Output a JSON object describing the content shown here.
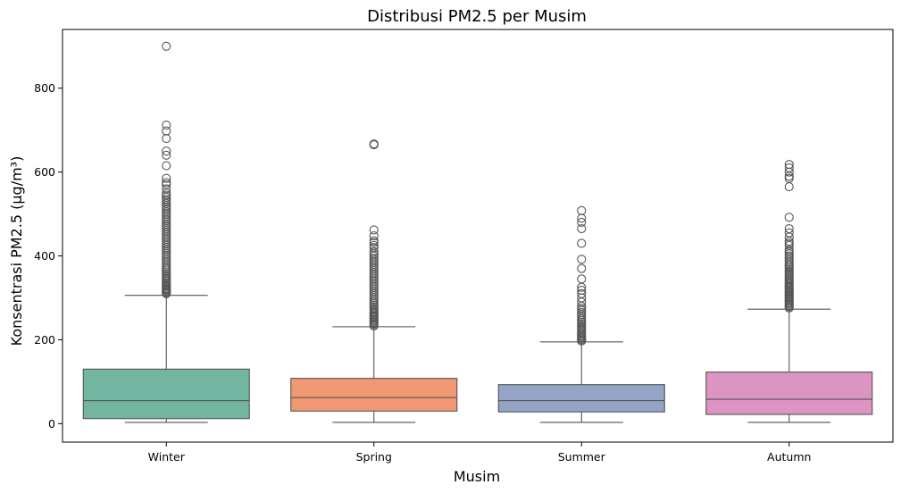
{
  "chart_data": {
    "type": "box",
    "title": "Distribusi PM2.5 per Musim",
    "xlabel": "Musim",
    "ylabel": "Konsentrasi PM2.5 (μg/m³)",
    "ylim": [
      -44,
      940
    ],
    "yticks": [
      0,
      200,
      400,
      600,
      800
    ],
    "grid": false,
    "categories": [
      "Winter",
      "Spring",
      "Summer",
      "Autumn"
    ],
    "colors": [
      "#72b5a0",
      "#ef9872",
      "#94a4c6",
      "#dc94c2"
    ],
    "line_color": "#555555",
    "boxes": [
      {
        "category": "Winter",
        "whisker_low": 3,
        "q1": 12,
        "median": 55,
        "q3": 130,
        "whisker_high": 306,
        "outliers": [
          310,
          312,
          315,
          318,
          320,
          322,
          325,
          328,
          330,
          333,
          336,
          340,
          343,
          346,
          350,
          354,
          358,
          362,
          366,
          370,
          375,
          380,
          385,
          390,
          395,
          400,
          405,
          410,
          415,
          420,
          425,
          430,
          435,
          440,
          445,
          450,
          455,
          460,
          465,
          470,
          475,
          480,
          485,
          490,
          495,
          500,
          505,
          510,
          515,
          520,
          525,
          530,
          535,
          540,
          545,
          550,
          560,
          570,
          575,
          585,
          615,
          640,
          650,
          680,
          698,
          712,
          900
        ]
      },
      {
        "category": "Spring",
        "whisker_low": 3,
        "q1": 30,
        "median": 62,
        "q3": 108,
        "whisker_high": 231,
        "outliers": [
          233,
          236,
          239,
          242,
          245,
          248,
          251,
          254,
          257,
          260,
          263,
          266,
          270,
          274,
          278,
          282,
          286,
          290,
          295,
          300,
          305,
          310,
          315,
          320,
          325,
          330,
          335,
          340,
          345,
          350,
          355,
          360,
          365,
          370,
          375,
          380,
          385,
          390,
          395,
          400,
          405,
          410,
          420,
          425,
          432,
          436,
          448,
          462,
          665,
          667
        ]
      },
      {
        "category": "Summer",
        "whisker_low": 3,
        "q1": 28,
        "median": 55,
        "q3": 93,
        "whisker_high": 195,
        "outliers": [
          197,
          200,
          203,
          206,
          209,
          212,
          215,
          218,
          222,
          226,
          230,
          234,
          238,
          242,
          246,
          250,
          255,
          260,
          265,
          270,
          275,
          280,
          290,
          300,
          310,
          318,
          325,
          345,
          370,
          392,
          430,
          465,
          480,
          490,
          508
        ]
      },
      {
        "category": "Autumn",
        "whisker_low": 3,
        "q1": 22,
        "median": 58,
        "q3": 123,
        "whisker_high": 273,
        "outliers": [
          276,
          279,
          282,
          285,
          288,
          291,
          294,
          297,
          300,
          303,
          306,
          309,
          312,
          315,
          318,
          321,
          324,
          327,
          330,
          333,
          336,
          340,
          344,
          348,
          352,
          356,
          360,
          364,
          368,
          372,
          376,
          380,
          385,
          390,
          395,
          400,
          405,
          410,
          415,
          425,
          430,
          435,
          445,
          455,
          465,
          492,
          565,
          585,
          590,
          600,
          610,
          618
        ]
      }
    ]
  }
}
